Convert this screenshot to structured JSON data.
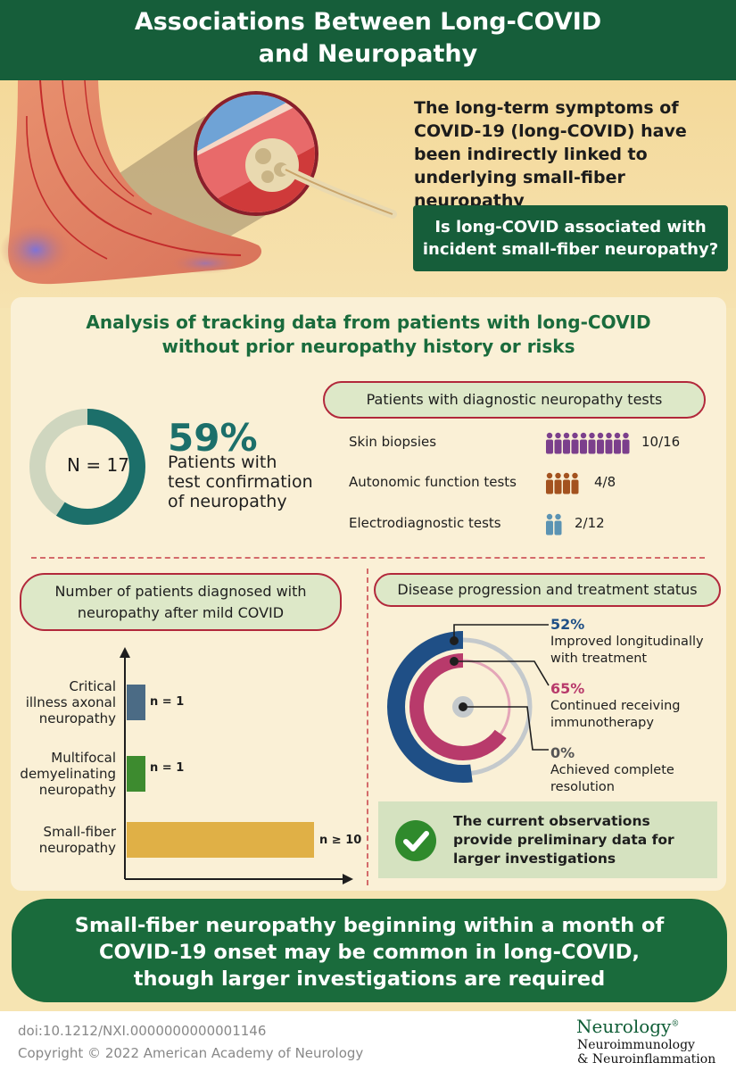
{
  "header": {
    "title_line1": "Associations Between Long-COVID",
    "title_line2": "and Neuropathy"
  },
  "intro": {
    "text": "The long-term symptoms of COVID-19 (long-COVID) have been indirectly linked to underlying small-fiber neuropathy"
  },
  "question": {
    "text": "Is long-COVID associated with incident small-fiber neuropathy?"
  },
  "analysis": {
    "title_line1": "Analysis of tracking data from patients with long-COVID",
    "title_line2": "without prior neuropathy history or risks",
    "n_label": "N = 17",
    "percent": "59%",
    "percent_fraction": 0.59,
    "percent_desc_line1": "Patients with",
    "percent_desc_line2": "test confirmation",
    "percent_desc_line3": "of neuropathy"
  },
  "tests": {
    "heading": "Patients with diagnostic neuropathy tests",
    "rows": [
      {
        "label": "Skin biopsies",
        "count": "10/16",
        "icons": 10,
        "color": "#7b3f8c"
      },
      {
        "label": "Autonomic function tests",
        "count": "4/8",
        "icons": 4,
        "color": "#a3521f"
      },
      {
        "label": "Electrodiagnostic tests",
        "count": "2/12",
        "icons": 2,
        "color": "#5b93b3"
      }
    ]
  },
  "diagnosed": {
    "heading_line1": "Number of patients diagnosed with",
    "heading_line2": "neuropathy after mild COVID",
    "bars": [
      {
        "line1": "Critical",
        "line2": "illness axonal",
        "line3": "neuropathy",
        "value_label": "n = 1",
        "value": 1,
        "color": "#4b6b85"
      },
      {
        "line1": "Multifocal",
        "line2": "demyelinating",
        "line3": "neuropathy",
        "value_label": "n = 1",
        "value": 1,
        "color": "#3d8b2f"
      },
      {
        "line1": "Small-fiber",
        "line2": "neuropathy",
        "line3": "",
        "value_label": "n ≥ 10",
        "value": 10,
        "color": "#e0b046"
      }
    ]
  },
  "progression": {
    "heading": "Disease progression and treatment status",
    "items": [
      {
        "value": "52%",
        "fraction": 0.52,
        "desc_line1": "Improved longitudinally",
        "desc_line2": "with treatment",
        "color": "#1f4f86"
      },
      {
        "value": "65%",
        "fraction": 0.65,
        "desc_line1": "Continued receiving",
        "desc_line2": "immunotherapy",
        "color": "#b83a6b"
      },
      {
        "value": "0%",
        "fraction": 0,
        "desc_line1": "Achieved complete",
        "desc_line2": "resolution",
        "color": "#888888"
      }
    ]
  },
  "observation": {
    "text": "The current observations provide preliminary data for larger investigations"
  },
  "conclusion": {
    "line1": "Small-fiber neuropathy beginning within a month of",
    "line2": "COVID-19 onset may be common in long-COVID,",
    "line3": "though larger investigations are required"
  },
  "footer": {
    "doi": "doi:10.1212/NXI.0000000000001146",
    "copyright": "Copyright © 2022 American Academy of Neurology",
    "journal_name": "Neurology",
    "journal_mark": "®",
    "journal_sub1": "Neuroimmunology",
    "journal_sub2": "& Neuroinflammation"
  }
}
